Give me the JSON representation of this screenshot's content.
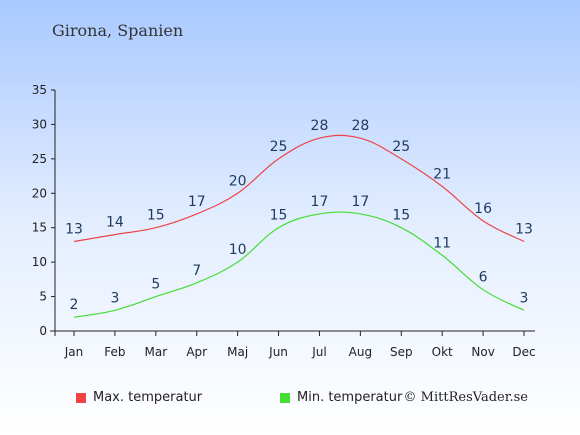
{
  "chart_data": {
    "type": "line",
    "title": "Girona, Spanien",
    "xlabel": "",
    "ylabel": "",
    "categories": [
      "Jan",
      "Feb",
      "Mar",
      "Apr",
      "Maj",
      "Jun",
      "Jul",
      "Aug",
      "Sep",
      "Okt",
      "Nov",
      "Dec"
    ],
    "yticks": [
      0,
      5,
      10,
      15,
      20,
      25,
      30,
      35
    ],
    "ylim": [
      0,
      35
    ],
    "grid": false,
    "legend_position": "bottom",
    "series": [
      {
        "name": "Max. temperatur",
        "color": "#ee4444",
        "values": [
          13,
          14,
          15,
          17,
          20,
          25,
          28,
          28,
          25,
          21,
          16,
          13
        ]
      },
      {
        "name": "Min. temperatur",
        "color": "#44dd33",
        "values": [
          2,
          3,
          5,
          7,
          10,
          15,
          17,
          17,
          15,
          11,
          6,
          3
        ]
      }
    ]
  },
  "legend": {
    "max_label": "Max. temperatur",
    "min_label": "Min. temperatur",
    "max_color": "#ee4444",
    "min_color": "#44dd33"
  },
  "watermark": "© MittResVader.se"
}
